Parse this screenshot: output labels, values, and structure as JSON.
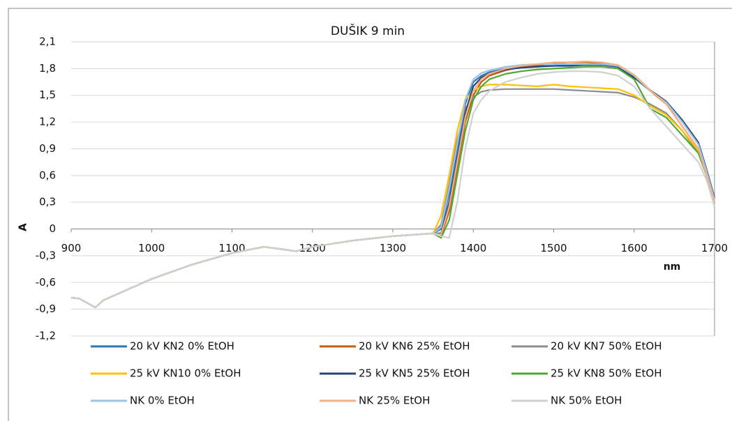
{
  "chart_data": {
    "type": "line",
    "title": "DUŠIK 9 min",
    "xlabel": "nm",
    "ylabel": "A",
    "x": [
      900,
      910,
      920,
      930,
      940,
      960,
      1000,
      1050,
      1100,
      1140,
      1180,
      1200,
      1250,
      1300,
      1350,
      1360,
      1370,
      1380,
      1390,
      1400,
      1410,
      1420,
      1440,
      1460,
      1480,
      1500,
      1520,
      1540,
      1560,
      1580,
      1600,
      1620,
      1640,
      1660,
      1680,
      1690,
      1700
    ],
    "series": [
      {
        "name": "20 kV KN2 0% EtOH",
        "color": "#2e75b6",
        "values": [
          -0.77,
          -0.78,
          -0.83,
          -0.88,
          -0.8,
          -0.72,
          -0.56,
          -0.4,
          -0.27,
          -0.2,
          -0.25,
          -0.2,
          -0.13,
          -0.08,
          -0.05,
          0.0,
          0.4,
          0.9,
          1.4,
          1.65,
          1.72,
          1.76,
          1.8,
          1.82,
          1.83,
          1.83,
          1.84,
          1.84,
          1.84,
          1.82,
          1.7,
          1.55,
          1.42,
          1.2,
          0.95,
          0.65,
          0.33
        ]
      },
      {
        "name": "20 kV KN6 25% EtOH",
        "color": "#c55a11",
        "values": [
          -0.77,
          -0.78,
          -0.83,
          -0.88,
          -0.8,
          -0.72,
          -0.56,
          -0.4,
          -0.27,
          -0.2,
          -0.25,
          -0.2,
          -0.13,
          -0.08,
          -0.05,
          -0.08,
          0.2,
          0.7,
          1.2,
          1.5,
          1.65,
          1.72,
          1.78,
          1.82,
          1.84,
          1.86,
          1.87,
          1.87,
          1.86,
          1.83,
          1.72,
          1.55,
          1.4,
          1.15,
          0.9,
          0.6,
          0.3
        ]
      },
      {
        "name": "20 kV KN7 50% EtOH",
        "color": "#8c8c8c",
        "values": [
          -0.77,
          -0.78,
          -0.83,
          -0.88,
          -0.8,
          -0.72,
          -0.56,
          -0.4,
          -0.27,
          -0.2,
          -0.25,
          -0.2,
          -0.13,
          -0.08,
          -0.05,
          0.05,
          0.5,
          1.0,
          1.35,
          1.48,
          1.54,
          1.56,
          1.57,
          1.57,
          1.57,
          1.57,
          1.56,
          1.55,
          1.54,
          1.53,
          1.48,
          1.4,
          1.3,
          1.1,
          0.85,
          0.6,
          0.3
        ]
      },
      {
        "name": "25 kV KN10 0% EtOH",
        "color": "#ffc000",
        "values": [
          -0.77,
          -0.78,
          -0.83,
          -0.88,
          -0.8,
          -0.72,
          -0.56,
          -0.4,
          -0.27,
          -0.2,
          -0.25,
          -0.2,
          -0.13,
          -0.08,
          -0.05,
          0.15,
          0.6,
          1.1,
          1.45,
          1.55,
          1.6,
          1.62,
          1.62,
          1.61,
          1.6,
          1.62,
          1.6,
          1.59,
          1.58,
          1.57,
          1.5,
          1.38,
          1.28,
          1.1,
          0.88,
          0.62,
          0.3
        ]
      },
      {
        "name": "25 kV KN5 25% EtOH",
        "color": "#264478",
        "values": [
          -0.77,
          -0.78,
          -0.83,
          -0.88,
          -0.8,
          -0.72,
          -0.56,
          -0.4,
          -0.27,
          -0.2,
          -0.25,
          -0.2,
          -0.13,
          -0.08,
          -0.05,
          -0.05,
          0.3,
          0.8,
          1.3,
          1.6,
          1.7,
          1.74,
          1.79,
          1.81,
          1.82,
          1.83,
          1.83,
          1.84,
          1.84,
          1.82,
          1.7,
          1.56,
          1.43,
          1.22,
          0.97,
          0.67,
          0.35
        ]
      },
      {
        "name": "25 kV KN8 50% EtOH",
        "color": "#4ea72e",
        "values": [
          -0.77,
          -0.78,
          -0.83,
          -0.88,
          -0.8,
          -0.72,
          -0.56,
          -0.4,
          -0.27,
          -0.2,
          -0.25,
          -0.2,
          -0.13,
          -0.08,
          -0.05,
          -0.1,
          0.1,
          0.6,
          1.1,
          1.45,
          1.6,
          1.68,
          1.74,
          1.77,
          1.79,
          1.8,
          1.81,
          1.82,
          1.82,
          1.8,
          1.68,
          1.35,
          1.25,
          1.05,
          0.85,
          0.6,
          0.3
        ]
      },
      {
        "name": "NK 0% EtOH",
        "color": "#9dc3e6",
        "values": [
          -0.77,
          -0.78,
          -0.83,
          -0.88,
          -0.8,
          -0.72,
          -0.56,
          -0.4,
          -0.27,
          -0.2,
          -0.25,
          -0.2,
          -0.13,
          -0.08,
          -0.05,
          0.02,
          0.45,
          0.95,
          1.45,
          1.68,
          1.75,
          1.78,
          1.82,
          1.84,
          1.85,
          1.85,
          1.85,
          1.85,
          1.85,
          1.83,
          1.72,
          1.55,
          1.42,
          1.2,
          0.95,
          0.65,
          0.33
        ]
      },
      {
        "name": "NK 25% EtOH",
        "color": "#f4b183",
        "values": [
          -0.77,
          -0.78,
          -0.83,
          -0.88,
          -0.8,
          -0.72,
          -0.56,
          -0.4,
          -0.27,
          -0.2,
          -0.25,
          -0.2,
          -0.13,
          -0.08,
          -0.05,
          -0.06,
          0.25,
          0.75,
          1.25,
          1.55,
          1.68,
          1.74,
          1.8,
          1.83,
          1.85,
          1.87,
          1.87,
          1.88,
          1.87,
          1.84,
          1.73,
          1.56,
          1.4,
          1.15,
          0.9,
          0.6,
          0.3
        ]
      },
      {
        "name": "NK 50% EtOH",
        "color": "#d0d0d0",
        "values": [
          -0.77,
          -0.78,
          -0.83,
          -0.88,
          -0.8,
          -0.72,
          -0.56,
          -0.4,
          -0.27,
          -0.2,
          -0.25,
          -0.2,
          -0.13,
          -0.08,
          -0.05,
          -0.08,
          -0.1,
          0.3,
          0.9,
          1.3,
          1.45,
          1.55,
          1.65,
          1.7,
          1.74,
          1.76,
          1.77,
          1.77,
          1.76,
          1.72,
          1.6,
          1.35,
          1.15,
          0.95,
          0.75,
          0.55,
          0.25
        ]
      }
    ],
    "xlim": [
      900,
      1700
    ],
    "xticks": [
      900,
      1000,
      1100,
      1200,
      1300,
      1400,
      1500,
      1600,
      1700
    ],
    "ylim": [
      -1.2,
      2.1
    ],
    "yticks": [
      {
        "value": -1.2,
        "label": "-1,2"
      },
      {
        "value": -0.9,
        "label": "-0,9"
      },
      {
        "value": -0.6,
        "label": "-0,6"
      },
      {
        "value": -0.3,
        "label": "-0,3"
      },
      0,
      {
        "value": 0.3,
        "label": "0,3"
      },
      {
        "value": 0.6,
        "label": "0,6"
      },
      {
        "value": 0.9,
        "label": "0,9"
      },
      {
        "value": 1.2,
        "label": "1,2"
      },
      {
        "value": 1.5,
        "label": "1,5"
      },
      {
        "value": 1.8,
        "label": "1,8"
      },
      {
        "value": 2.1,
        "label": "2,1"
      }
    ],
    "grid": true,
    "legend": "bottom"
  }
}
